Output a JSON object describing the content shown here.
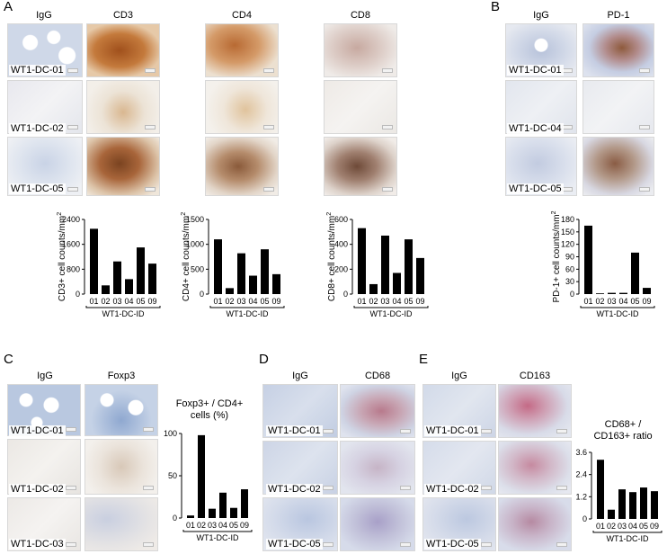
{
  "panels": {
    "A": {
      "letter": "A",
      "columns": [
        "IgG",
        "CD3",
        "CD4",
        "CD8"
      ],
      "rows": [
        "WT1-DC-01",
        "WT1-DC-02",
        "WT1-DC-05"
      ]
    },
    "B": {
      "letter": "B",
      "columns": [
        "IgG",
        "PD-1"
      ],
      "rows": [
        "WT1-DC-01",
        "WT1-DC-04",
        "WT1-DC-05"
      ]
    },
    "C": {
      "letter": "C",
      "columns": [
        "IgG",
        "Foxp3"
      ],
      "rows": [
        "WT1-DC-01",
        "WT1-DC-02",
        "WT1-DC-03"
      ]
    },
    "D": {
      "letter": "D",
      "columns": [
        "IgG",
        "CD68"
      ],
      "rows": [
        "WT1-DC-01",
        "WT1-DC-02",
        "WT1-DC-05"
      ]
    },
    "E": {
      "letter": "E",
      "columns": [
        "IgG",
        "CD163"
      ],
      "rows": [
        "WT1-DC-01",
        "WT1-DC-02",
        "WT1-DC-05"
      ]
    }
  },
  "chart_data": [
    {
      "id": "cd3",
      "type": "bar",
      "categories": [
        "01",
        "02",
        "03",
        "04",
        "05",
        "09"
      ],
      "values": [
        2100,
        280,
        1050,
        480,
        1500,
        980
      ],
      "ylabel": "CD3+ cell counts/mm2",
      "xlabel": "WT1-DC-ID",
      "ylim": [
        0,
        2400
      ],
      "yticks": [
        "0",
        "800",
        "1600",
        "2400"
      ]
    },
    {
      "id": "cd4",
      "type": "bar",
      "categories": [
        "01",
        "02",
        "03",
        "04",
        "05",
        "09"
      ],
      "values": [
        1100,
        120,
        820,
        370,
        900,
        400
      ],
      "ylabel": "CD4+ cell counts/mm2",
      "xlabel": "WT1-DC-ID",
      "ylim": [
        0,
        1500
      ],
      "yticks": [
        "0",
        "500",
        "1000",
        "1500"
      ]
    },
    {
      "id": "cd8",
      "type": "bar",
      "categories": [
        "01",
        "02",
        "03",
        "04",
        "05",
        "09"
      ],
      "values": [
        530,
        80,
        470,
        170,
        440,
        290
      ],
      "ylabel": "CD8+ cell counts/mm2",
      "xlabel": "WT1-DC-ID",
      "ylim": [
        0,
        600
      ],
      "yticks": [
        "0",
        "200",
        "400",
        "600"
      ]
    },
    {
      "id": "pd1",
      "type": "bar",
      "categories": [
        "01",
        "02",
        "03",
        "04",
        "05",
        "09"
      ],
      "values": [
        165,
        1,
        3,
        3,
        100,
        15
      ],
      "ylabel": "PD-1+ cell counts/mm2",
      "xlabel": "WT1-DC-ID",
      "ylim": [
        0,
        180
      ],
      "yticks": [
        "0",
        "30",
        "60",
        "90",
        "120",
        "150",
        "180"
      ]
    },
    {
      "id": "foxp3",
      "type": "bar",
      "title": "Foxp3+ / CD4+ cells (%)",
      "title_lines": [
        "Foxp3+ / CD4+",
        "cells (%)"
      ],
      "categories": [
        "01",
        "02",
        "03",
        "04",
        "05",
        "09"
      ],
      "values": [
        3,
        98,
        11,
        30,
        12,
        34
      ],
      "xlabel": "WT1-DC-ID",
      "ylim": [
        0,
        100
      ],
      "yticks": [
        "0",
        "50",
        "100"
      ]
    },
    {
      "id": "ratio",
      "type": "bar",
      "title": "CD68+ / CD163+ ratio",
      "title_lines": [
        "CD68+ /",
        "CD163+ ratio"
      ],
      "categories": [
        "01",
        "02",
        "03",
        "04",
        "05",
        "09"
      ],
      "values": [
        3.2,
        0.5,
        1.6,
        1.45,
        1.7,
        1.5
      ],
      "xlabel": "WT1-DC-ID",
      "ylim": [
        0,
        3.6
      ],
      "yticks": [
        "0",
        "1.2",
        "2.4",
        "3.6"
      ]
    }
  ]
}
